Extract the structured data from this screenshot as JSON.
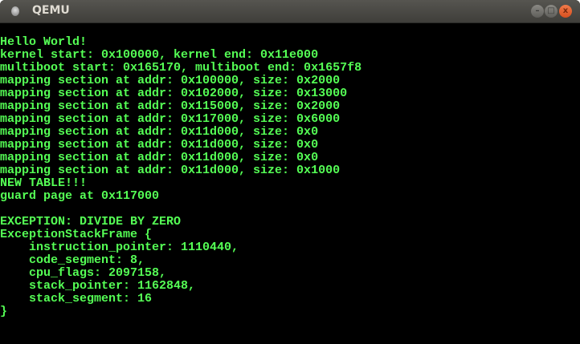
{
  "window": {
    "title": "QEMU",
    "buttons": {
      "minimize": "–",
      "maximize": "□",
      "close": "x"
    }
  },
  "colors": {
    "text": "#55ff55",
    "background": "#000000"
  },
  "console": {
    "lines": [
      "",
      "Hello World!",
      "kernel start: 0x100000, kernel end: 0x11e000",
      "multiboot start: 0x165170, multiboot end: 0x1657f8",
      "mapping section at addr: 0x100000, size: 0x2000",
      "mapping section at addr: 0x102000, size: 0x13000",
      "mapping section at addr: 0x115000, size: 0x2000",
      "mapping section at addr: 0x117000, size: 0x6000",
      "mapping section at addr: 0x11d000, size: 0x0",
      "mapping section at addr: 0x11d000, size: 0x0",
      "mapping section at addr: 0x11d000, size: 0x0",
      "mapping section at addr: 0x11d000, size: 0x1000",
      "NEW TABLE!!!",
      "guard page at 0x117000",
      "",
      "EXCEPTION: DIVIDE BY ZERO",
      "ExceptionStackFrame {",
      "    instruction_pointer: 1110440,",
      "    code_segment: 8,",
      "    cpu_flags: 2097158,",
      "    stack_pointer: 1162848,",
      "    stack_segment: 16",
      "}"
    ]
  }
}
